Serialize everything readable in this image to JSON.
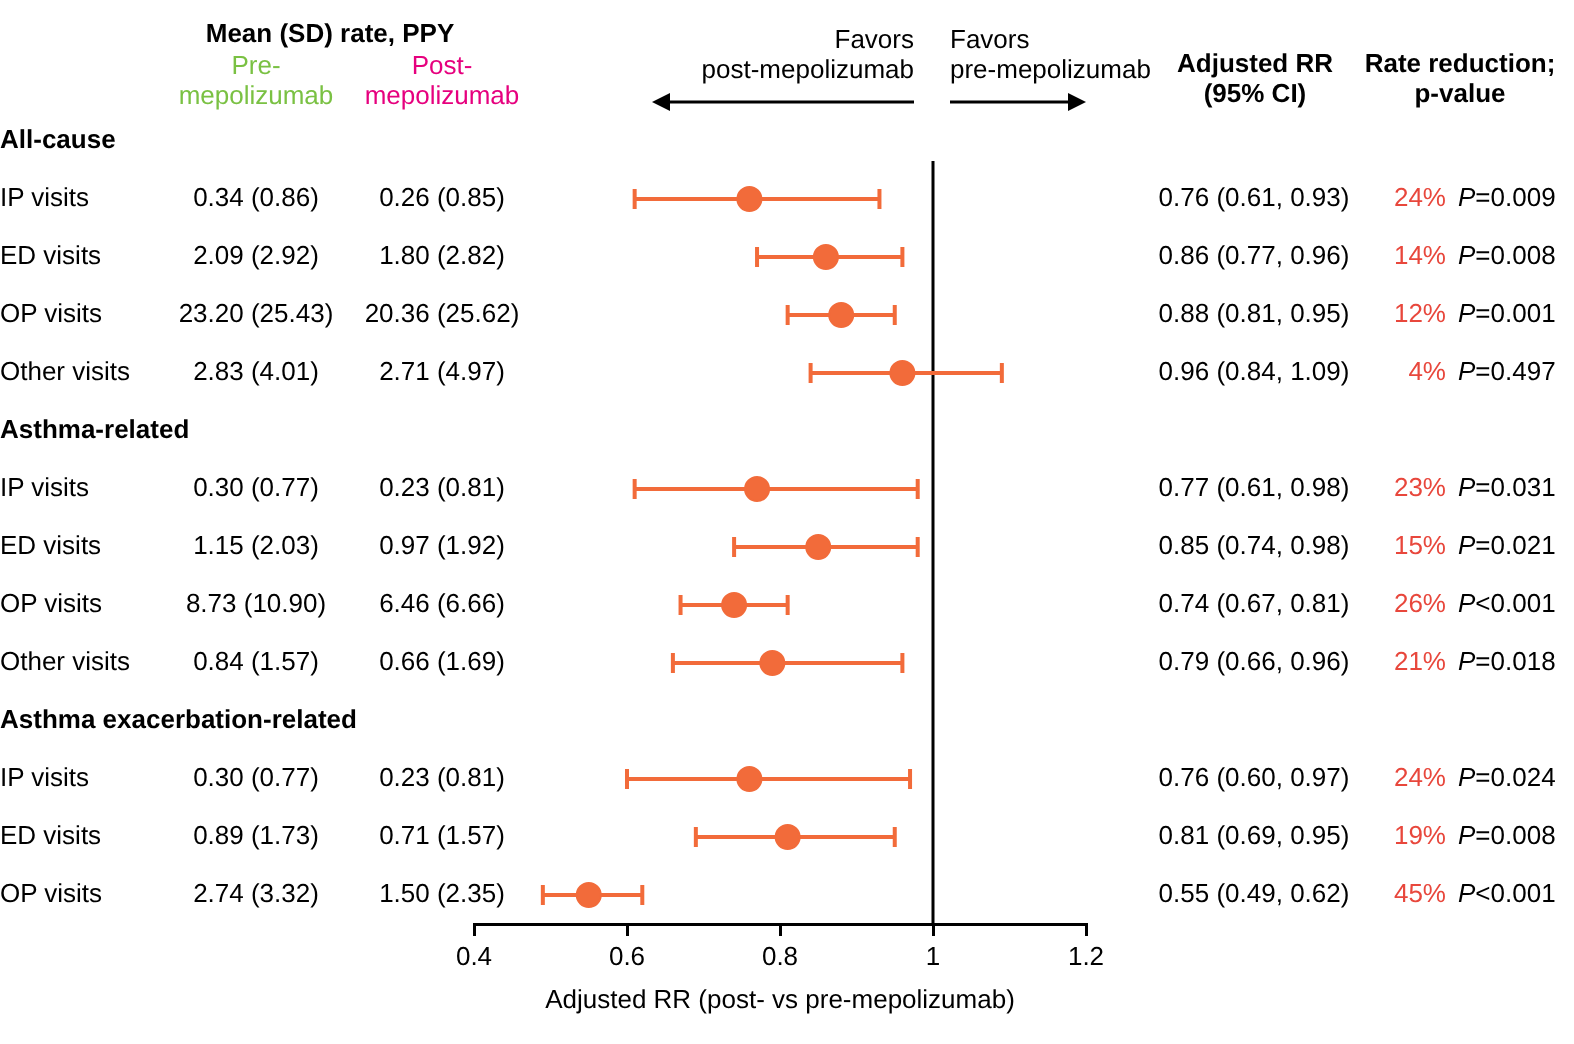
{
  "chart_data": {
    "type": "scatter",
    "categories": [
      "All-cause",
      "IP visits",
      "ED visits",
      "OP visits",
      "Other visits",
      "Asthma-related",
      "IP visits",
      "ED visits",
      "OP visits",
      "Other visits",
      "Asthma exacerbation-related",
      "IP visits",
      "ED visits",
      "OP visits"
    ],
    "values": [
      null,
      0.76,
      0.86,
      0.88,
      0.96,
      null,
      0.77,
      0.85,
      0.74,
      0.79,
      null,
      0.76,
      0.81,
      0.55
    ],
    "errors": [
      null,
      [
        0.61,
        0.93
      ],
      [
        0.77,
        0.96
      ],
      [
        0.81,
        0.95
      ],
      [
        0.84,
        1.09
      ],
      null,
      [
        0.61,
        0.98
      ],
      [
        0.74,
        0.98
      ],
      [
        0.67,
        0.81
      ],
      [
        0.66,
        0.96
      ],
      null,
      [
        0.6,
        0.97
      ],
      [
        0.69,
        0.95
      ],
      [
        0.49,
        0.62
      ]
    ],
    "value_labels": [
      null,
      "0.76 (0.61, 0.93)",
      "0.86 (0.77, 0.96)",
      "0.88 (0.81, 0.95)",
      "0.96 (0.84, 1.09)",
      null,
      "0.77 (0.61, 0.98)",
      "0.85 (0.74, 0.98)",
      "0.74 (0.67, 0.81)",
      "0.79 (0.66, 0.96)",
      null,
      "0.76 (0.60, 0.97)",
      "0.81 (0.69, 0.95)",
      "0.55 (0.49, 0.62)"
    ],
    "color": "#f26b3a",
    "marker": "circle",
    "orientation": "horizontal",
    "xlabel": "Adjusted RR (post- vs pre-mepolizumab)",
    "xlim": [
      0.4,
      1.2
    ],
    "xticks": [
      0.4,
      0.6,
      0.8,
      1,
      1.2
    ],
    "ref_lines": [
      {
        "axis": "x",
        "value": 1,
        "color": "#000000"
      }
    ],
    "legend": false,
    "grid": false,
    "annotations": [
      "Mean (SD) rate, PPY",
      "Pre-mepolizumab",
      "Post-mepolizumab",
      "Favors post-mepolizumab",
      "Favors pre-mepolizumab",
      "Adjusted RR (95% CI)",
      "Rate reduction; p-value",
      "0.34 (0.86)",
      "0.26 (0.85)",
      "24%",
      "P=0.009",
      "2.09 (2.92)",
      "1.80 (2.82)",
      "14%",
      "P=0.008",
      "23.20 (25.43)",
      "20.36 (25.62)",
      "12%",
      "P=0.001",
      "2.83 (4.01)",
      "2.71 (4.97)",
      "4%",
      "P=0.497",
      "0.30 (0.77)",
      "0.23 (0.81)",
      "23%",
      "P=0.031",
      "1.15 (2.03)",
      "0.97 (1.92)",
      "15%",
      "P=0.021",
      "8.73 (10.90)",
      "6.46 (6.66)",
      "26%",
      "P<0.001",
      "0.84 (1.57)",
      "0.66 (1.69)",
      "21%",
      "P=0.018",
      "0.30 (0.77)",
      "0.23 (0.81)",
      "24%",
      "P=0.024",
      "0.89 (1.73)",
      "0.71 (1.57)",
      "19%",
      "P=0.008",
      "2.74 (3.32)",
      "1.50 (2.35)",
      "45%",
      "P<0.001"
    ]
  }
}
